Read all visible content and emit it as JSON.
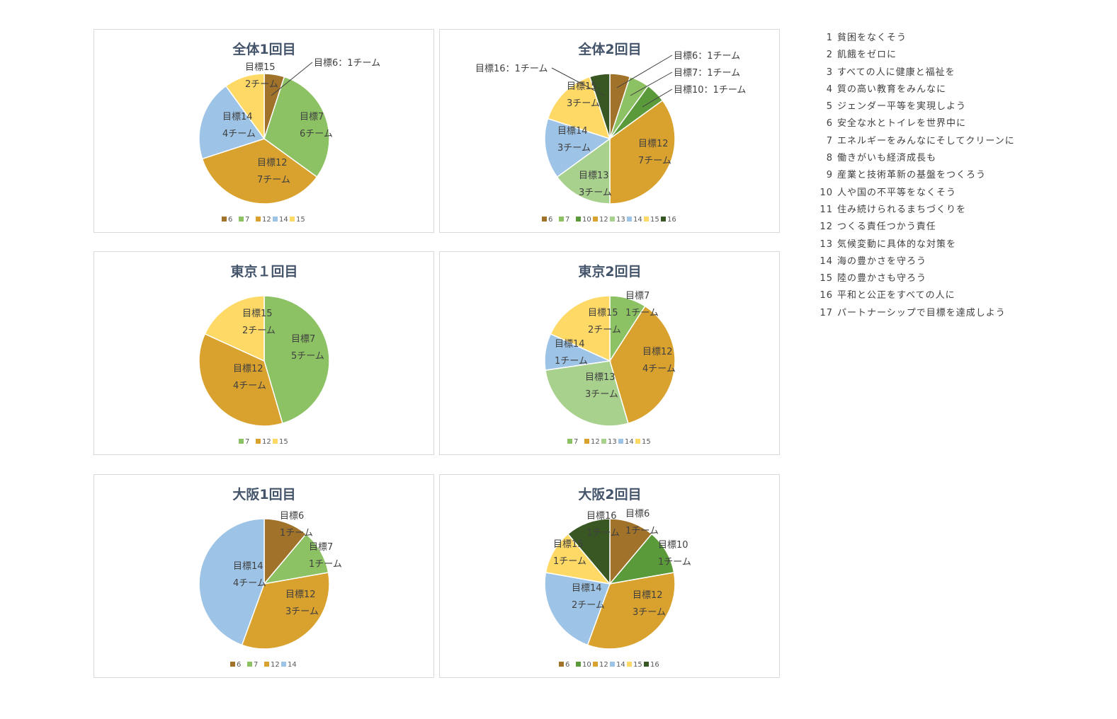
{
  "colors": {
    "6": "#a0722a",
    "7": "#8cc263",
    "10": "#5b9a3a",
    "12": "#d9a12d",
    "13": "#a9d18e",
    "14": "#9dc3e6",
    "15": "#ffd966",
    "16": "#385723"
  },
  "chart_data": [
    {
      "type": "pie",
      "title": "全体1回目",
      "slices": [
        {
          "goal": "6",
          "value": 1,
          "label": [
            "目標6：1チーム"
          ]
        },
        {
          "goal": "7",
          "value": 6,
          "label": [
            "目標7",
            "6チーム"
          ]
        },
        {
          "goal": "12",
          "value": 7,
          "label": [
            "目標12",
            "7チーム"
          ]
        },
        {
          "goal": "14",
          "value": 4,
          "label": [
            "目標14",
            "4チーム"
          ]
        },
        {
          "goal": "15",
          "value": 2,
          "label": [
            "目標15",
            "2チーム"
          ]
        }
      ],
      "legend": [
        "6",
        "7",
        "12",
        "14",
        "15"
      ]
    },
    {
      "type": "pie",
      "title": "全体2回目",
      "slices": [
        {
          "goal": "6",
          "value": 1,
          "label": [
            "目標6：1チーム"
          ]
        },
        {
          "goal": "7",
          "value": 1,
          "label": [
            "目標7：1チーム"
          ]
        },
        {
          "goal": "10",
          "value": 1,
          "label": [
            "目標10：1チーム"
          ]
        },
        {
          "goal": "12",
          "value": 7,
          "label": [
            "目標12",
            "7チーム"
          ]
        },
        {
          "goal": "13",
          "value": 3,
          "label": [
            "目標13",
            "3チーム"
          ]
        },
        {
          "goal": "14",
          "value": 3,
          "label": [
            "目標14",
            "3チーム"
          ]
        },
        {
          "goal": "15",
          "value": 3,
          "label": [
            "目標15：",
            "3チーム"
          ]
        },
        {
          "goal": "16",
          "value": 1,
          "label": [
            "目標16：1チーム"
          ]
        }
      ],
      "legend": [
        "6",
        "7",
        "10",
        "12",
        "13",
        "14",
        "15",
        "16"
      ]
    },
    {
      "type": "pie",
      "title": "東京１回目",
      "slices": [
        {
          "goal": "7",
          "value": 5,
          "label": [
            "目標7",
            "5チーム"
          ]
        },
        {
          "goal": "12",
          "value": 4,
          "label": [
            "目標12",
            "4チーム"
          ]
        },
        {
          "goal": "15",
          "value": 2,
          "label": [
            "目標15",
            "2チーム"
          ]
        }
      ],
      "legend": [
        "7",
        "12",
        "15"
      ]
    },
    {
      "type": "pie",
      "title": "東京2回目",
      "slices": [
        {
          "goal": "7",
          "value": 1,
          "label": [
            "目標7",
            "1チーム"
          ]
        },
        {
          "goal": "12",
          "value": 4,
          "label": [
            "目標12",
            "4チーム"
          ]
        },
        {
          "goal": "13",
          "value": 3,
          "label": [
            "目標13",
            "3チーム"
          ]
        },
        {
          "goal": "14",
          "value": 1,
          "label": [
            "目標14",
            "1チーム"
          ]
        },
        {
          "goal": "15",
          "value": 2,
          "label": [
            "目標15",
            "2チーム"
          ]
        }
      ],
      "legend": [
        "7",
        "12",
        "13",
        "14",
        "15"
      ]
    },
    {
      "type": "pie",
      "title": "大阪1回目",
      "slices": [
        {
          "goal": "6",
          "value": 1,
          "label": [
            "目標6",
            "1チーム"
          ]
        },
        {
          "goal": "7",
          "value": 1,
          "label": [
            "目標7",
            "1チーム"
          ]
        },
        {
          "goal": "12",
          "value": 3,
          "label": [
            "目標12",
            "3チーム"
          ]
        },
        {
          "goal": "14",
          "value": 4,
          "label": [
            "目標14",
            "4チーム"
          ]
        }
      ],
      "legend": [
        "6",
        "7",
        "12",
        "14"
      ]
    },
    {
      "type": "pie",
      "title": "大阪2回目",
      "slices": [
        {
          "goal": "6",
          "value": 1,
          "label": [
            "目標6",
            "1チーム"
          ]
        },
        {
          "goal": "10",
          "value": 1,
          "label": [
            "目標10",
            "1チーム"
          ]
        },
        {
          "goal": "12",
          "value": 3,
          "label": [
            "目標12",
            "3チーム"
          ]
        },
        {
          "goal": "14",
          "value": 2,
          "label": [
            "目標14",
            "2チーム"
          ]
        },
        {
          "goal": "15",
          "value": 1,
          "label": [
            "目標15",
            "1チーム"
          ]
        },
        {
          "goal": "16",
          "value": 1,
          "label": [
            "目標16",
            "1チーム"
          ]
        }
      ],
      "legend": [
        "6",
        "10",
        "12",
        "14",
        "15",
        "16"
      ]
    }
  ],
  "sdg_goals": [
    {
      "num": "1",
      "text": "貧困をなくそう"
    },
    {
      "num": "2",
      "text": "飢餓をゼロに"
    },
    {
      "num": "3",
      "text": "すべての人に健康と福祉を"
    },
    {
      "num": "4",
      "text": "質の高い教育をみんなに"
    },
    {
      "num": "5",
      "text": "ジェンダー平等を実現しよう"
    },
    {
      "num": "6",
      "text": "安全な水とトイレを世界中に"
    },
    {
      "num": "7",
      "text": "エネルギーをみんなにそしてクリーンに"
    },
    {
      "num": "8",
      "text": "働きがいも経済成長も"
    },
    {
      "num": "9",
      "text": "産業と技術革新の基盤をつくろう"
    },
    {
      "num": "10",
      "text": "人や国の不平等をなくそう"
    },
    {
      "num": "11",
      "text": "住み続けられるまちづくりを"
    },
    {
      "num": "12",
      "text": "つくる責任つかう責任"
    },
    {
      "num": "13",
      "text": "気候変動に具体的な対策を"
    },
    {
      "num": "14",
      "text": "海の豊かさを守ろう"
    },
    {
      "num": "15",
      "text": "陸の豊かさも守ろう"
    },
    {
      "num": "16",
      "text": "平和と公正をすべての人に"
    },
    {
      "num": "17",
      "text": "パートナーシップで目標を達成しよう"
    }
  ]
}
